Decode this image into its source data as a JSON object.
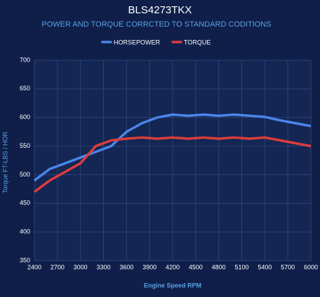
{
  "chart_data": {
    "type": "line",
    "title": "BLS4273TKX",
    "subtitle": "POWER AND TORQUE CORRCTED TO STANDARD CODITIONS",
    "x_label": "Engine Speed RPM",
    "y_label": "Torque FT-LBS / HOR",
    "x": [
      2400,
      2600,
      2800,
      3000,
      3200,
      3400,
      3600,
      3800,
      4000,
      4200,
      4400,
      4600,
      4800,
      5000,
      5200,
      5400,
      5600,
      5800,
      6000
    ],
    "series": [
      {
        "name": "HORSEPOWER",
        "color": "#4a86e8",
        "values": [
          490,
          510,
          520,
          530,
          540,
          550,
          575,
          590,
          600,
          605,
          603,
          605,
          603,
          605,
          603,
          601,
          595,
          590,
          585
        ]
      },
      {
        "name": "TORQUE",
        "color": "#dc3c3c",
        "values": [
          470,
          490,
          505,
          520,
          550,
          560,
          563,
          565,
          563,
          565,
          563,
          565,
          563,
          565,
          563,
          565,
          560,
          555,
          550
        ]
      }
    ],
    "xlim": [
      2400,
      6000
    ],
    "xticks": [
      2400,
      2700,
      3000,
      3300,
      3600,
      3900,
      4200,
      4500,
      4800,
      5100,
      5400,
      5700,
      6000
    ],
    "ylim": [
      350,
      700
    ],
    "yticks": [
      350,
      400,
      450,
      500,
      550,
      600,
      650,
      700
    ],
    "grid": true,
    "legend": "top"
  }
}
